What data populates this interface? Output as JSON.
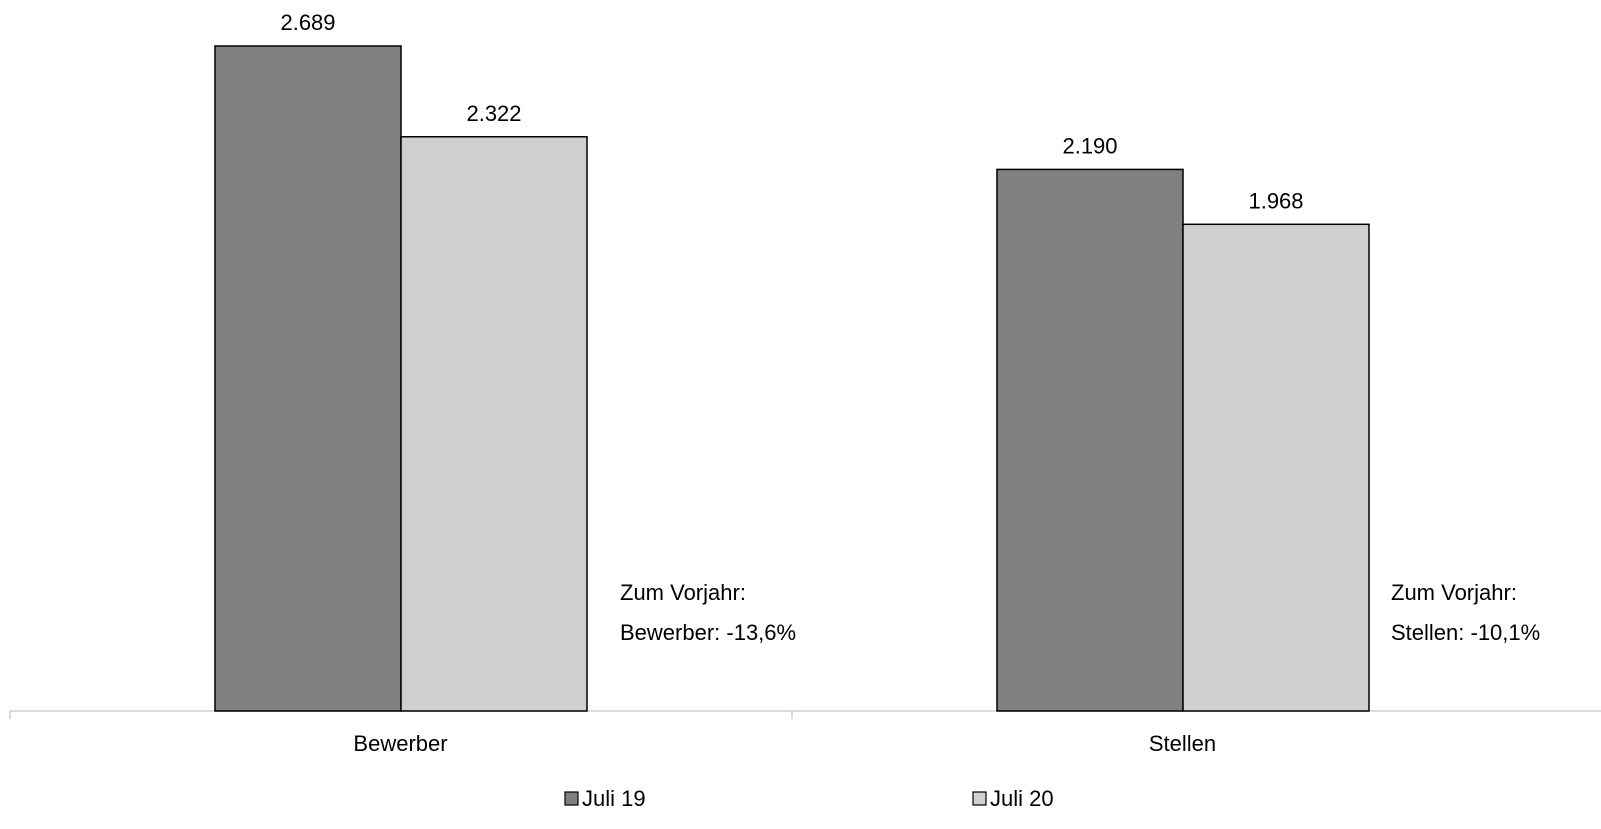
{
  "chart_data": {
    "type": "bar",
    "categories": [
      "Bewerber",
      "Stellen"
    ],
    "series": [
      {
        "name": "Juli 19",
        "values": [
          2689,
          2190
        ],
        "labels": [
          "2.689",
          "2.190"
        ],
        "color": "#808080"
      },
      {
        "name": "Juli 20",
        "values": [
          2322,
          1968
        ],
        "labels": [
          "2.322",
          "1.968"
        ],
        "color": "#d0cfd0"
      }
    ],
    "ylim": [
      0,
      2689
    ],
    "grid": false,
    "legend_position": "bottom",
    "annotations": [
      {
        "line1": "Zum Vorjahr:",
        "line2": "Bewerber: -13,6%"
      },
      {
        "line1": "Zum Vorjahr:",
        "line2": "Stellen: -10,1%"
      }
    ]
  }
}
